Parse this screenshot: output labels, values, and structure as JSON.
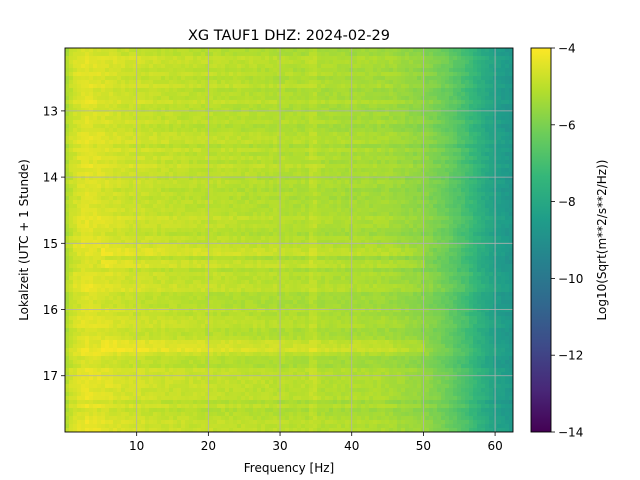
{
  "chart_data": {
    "type": "heatmap",
    "title": "XG TAUF1  DHZ: 2024-02-29",
    "xlabel": "Frequency [Hz]",
    "ylabel": "Lokalzeit (UTC + 1 Stunde)",
    "xlim": [
      0,
      62.5
    ],
    "ylim": [
      17.85,
      12.05
    ],
    "y_inverted": true,
    "xticks": [
      10,
      20,
      30,
      40,
      50,
      60
    ],
    "xtick_labels": [
      "10",
      "20",
      "30",
      "40",
      "50",
      "60"
    ],
    "yticks": [
      13,
      14,
      15,
      16,
      17
    ],
    "ytick_labels": [
      "13",
      "14",
      "15",
      "16",
      "17"
    ],
    "grid": true,
    "colormap": "viridis",
    "colorbar": {
      "label": "Log10(Sqrt(m**2/s**2/Hz))",
      "range": [
        -14,
        -4
      ],
      "ticks": [
        -4,
        -6,
        -8,
        -10,
        -12,
        -14
      ],
      "tick_labels": [
        "−4",
        "−6",
        "−8",
        "−10",
        "−12",
        "−14"
      ]
    },
    "profile": {
      "frequency_hz": [
        0,
        1,
        3,
        8,
        15,
        25,
        35,
        45,
        50,
        53,
        56,
        58,
        60,
        62.5
      ],
      "log_amplitude": [
        -5.3,
        -4.7,
        -4.4,
        -4.7,
        -4.9,
        -5.05,
        -5.2,
        -5.35,
        -5.7,
        -6.2,
        -7.0,
        -7.7,
        -8.3,
        -8.7
      ]
    },
    "bright_bands_hours": [
      15.15,
      15.3,
      16.5,
      16.6
    ],
    "colors": {
      "grid": "#b0b0b0"
    }
  }
}
